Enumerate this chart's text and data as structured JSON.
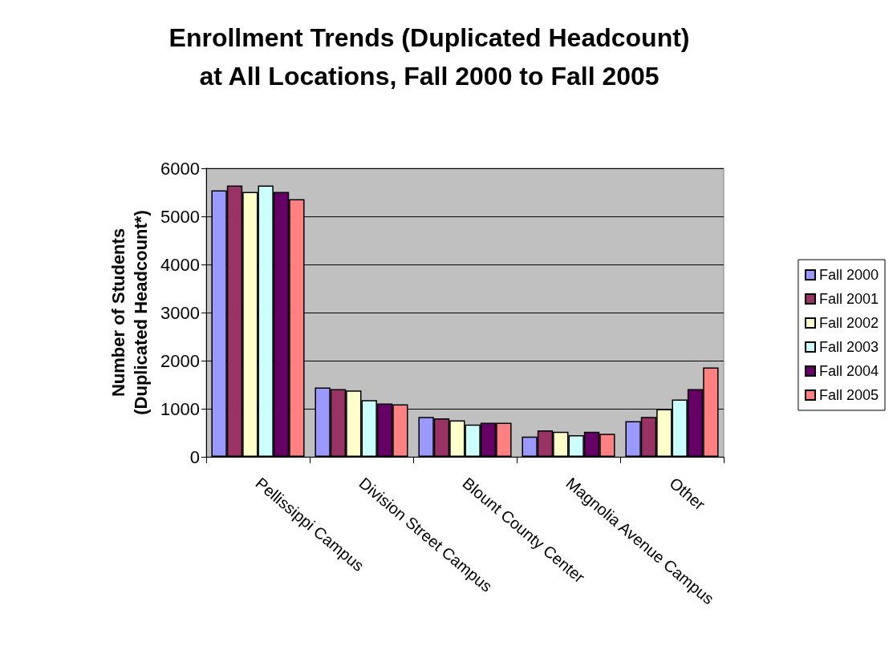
{
  "chart_data": {
    "type": "bar",
    "title": "Enrollment Trends (Duplicated Headcount)\nat All Locations, Fall 2000 to Fall 2005",
    "ylabel": "Number of Students\n(Duplicated Headcount*)",
    "categories": [
      "Pellissippi Campus",
      "Division Street Campus",
      "Blount County Center",
      "Magnolia Avenue Campus",
      "Other"
    ],
    "series": [
      {
        "name": "Fall 2000",
        "color": "#9999ff",
        "values": [
          5540,
          1440,
          830,
          420,
          740
        ]
      },
      {
        "name": "Fall 2001",
        "color": "#993366",
        "values": [
          5640,
          1410,
          800,
          550,
          830
        ]
      },
      {
        "name": "Fall 2002",
        "color": "#ffffcc",
        "values": [
          5510,
          1380,
          760,
          520,
          990
        ]
      },
      {
        "name": "Fall 2003",
        "color": "#ccffff",
        "values": [
          5640,
          1180,
          670,
          450,
          1190
        ]
      },
      {
        "name": "Fall 2004",
        "color": "#660066",
        "values": [
          5510,
          1110,
          710,
          520,
          1410
        ]
      },
      {
        "name": "Fall 2005",
        "color": "#ff8080",
        "values": [
          5360,
          1090,
          710,
          480,
          1860
        ]
      }
    ],
    "ylim": [
      0,
      6000
    ],
    "yticks": [
      0,
      1000,
      2000,
      3000,
      4000,
      5000,
      6000
    ],
    "grid": "y",
    "legend": "right"
  }
}
